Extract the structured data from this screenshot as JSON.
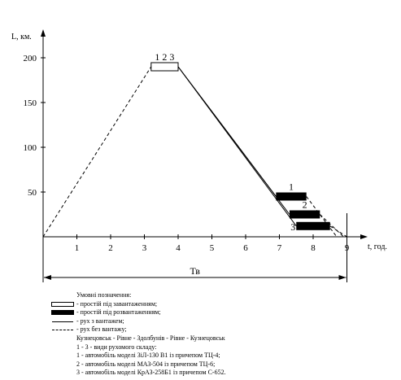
{
  "chart_data": {
    "type": "line",
    "ylabel": "L, км.",
    "xlabel": "t, год.",
    "ylim": [
      0,
      215
    ],
    "xlim": [
      0,
      9.7
    ],
    "y_ticks": [
      "50",
      "100",
      "150",
      "200"
    ],
    "x_ticks": [
      "1",
      "2",
      "3",
      "4",
      "5",
      "6",
      "7",
      "8",
      "9"
    ],
    "span_label": "Тв",
    "span": [
      0,
      9
    ],
    "group_label": "1 2 3",
    "series": [
      {
        "style": "dashed",
        "x": [
          0,
          3.2
        ],
        "y": [
          0,
          190
        ]
      },
      {
        "style": "solid",
        "x": [
          4.0,
          6.9,
          6.9
        ],
        "y": [
          190,
          45,
          45
        ]
      },
      {
        "style": "solid",
        "x": [
          4.0,
          7.3,
          7.3
        ],
        "y": [
          190,
          25,
          25
        ]
      },
      {
        "style": "solid",
        "x": [
          4.0,
          7.5,
          7.5
        ],
        "y": [
          190,
          12,
          12
        ]
      },
      {
        "style": "dashed",
        "x": [
          7.8,
          8.7
        ],
        "y": [
          45,
          0
        ]
      },
      {
        "style": "dashed",
        "x": [
          8.2,
          8.9
        ],
        "y": [
          25,
          0
        ]
      },
      {
        "style": "dashed",
        "x": [
          8.5,
          9.0
        ],
        "y": [
          12,
          0
        ]
      }
    ],
    "loading": {
      "label": "1 2 3",
      "x": [
        3.2,
        4.0
      ],
      "y": 190,
      "fill": "empty"
    },
    "unloading": [
      {
        "label": "1",
        "x": [
          6.9,
          7.8
        ],
        "y": 45,
        "fill": "full"
      },
      {
        "label": "2",
        "x": [
          7.3,
          8.2
        ],
        "y": 25,
        "fill": "full"
      },
      {
        "label": "3",
        "x": [
          7.5,
          8.5
        ],
        "y": 12,
        "fill": "full"
      }
    ]
  },
  "legend": {
    "title": "Умовні позначення:",
    "items": [
      {
        "symbol": "empty",
        "text": "- простій під завантаженням;"
      },
      {
        "symbol": "full",
        "text": "- простій під розвантаженням;"
      },
      {
        "symbol": "solid",
        "text": "- рух з вантажем;"
      },
      {
        "symbol": "dashed",
        "text": "- рух без вантажу;"
      }
    ],
    "route": "Кузнецовськ - Рівне - Здолбунів - Рівне - Кузнецовськ",
    "notes": [
      "1 - 3 - види рухомого складу:",
      "1 - автомобіль моделі ЗіЛ-130 В1 із причепом ТЦ-4;",
      "2 - автомобіль моделі МАЗ-504 із причепом ТЦ-6;",
      "3 - автомобіль моделі КрАЗ-258Б1 із причепом С-652."
    ]
  },
  "colors": {
    "ink": "#000000",
    "background": "#ffffff"
  }
}
